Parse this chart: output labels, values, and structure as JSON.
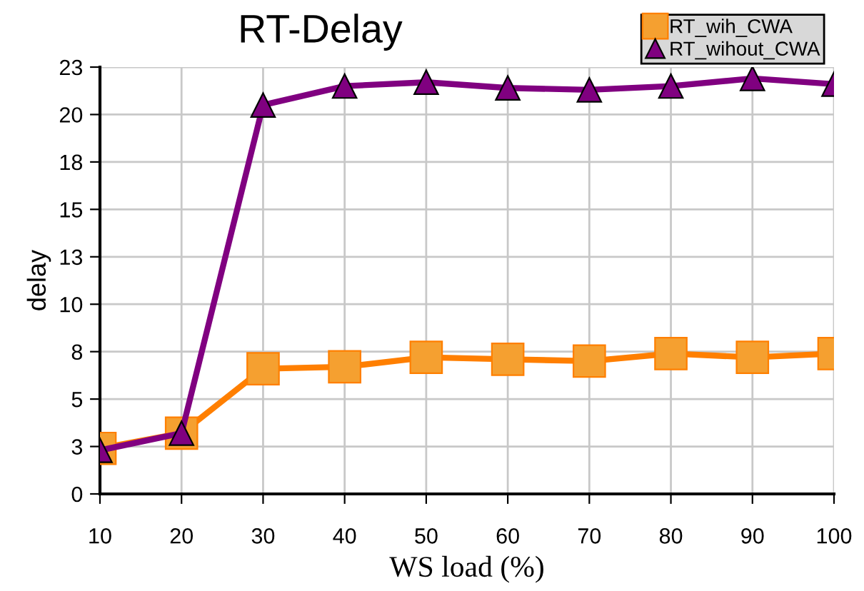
{
  "chart_data": {
    "type": "line",
    "title": "RT-Delay",
    "xlabel": "WS load (%)",
    "ylabel": "delay",
    "x": [
      10,
      20,
      30,
      40,
      50,
      60,
      70,
      80,
      90,
      100
    ],
    "series": [
      {
        "name": "RT_wih_CWA",
        "color": "#ff7f00",
        "marker": "square",
        "values": [
          2.4,
          3.2,
          6.6,
          6.7,
          7.2,
          7.1,
          7.0,
          7.4,
          7.2,
          7.4
        ]
      },
      {
        "name": "RT_wihout_CWA",
        "color": "#800080",
        "marker": "triangle",
        "values": [
          2.3,
          3.2,
          20.5,
          21.5,
          21.7,
          21.4,
          21.3,
          21.5,
          21.9,
          21.6
        ]
      }
    ],
    "xlim": [
      10,
      100
    ],
    "xticks": [
      10,
      20,
      30,
      40,
      50,
      60,
      70,
      80,
      90,
      100
    ],
    "ylim": [
      0,
      22.5
    ],
    "yticks": [
      0,
      {
        "value": 2.5,
        "label": "3"
      },
      5,
      {
        "value": 7.5,
        "label": "8"
      },
      10,
      {
        "value": 12.5,
        "label": "13"
      },
      15,
      {
        "value": 17.5,
        "label": "18"
      },
      20,
      {
        "value": 22.5,
        "label": "23"
      }
    ],
    "grid": true,
    "legend": "top right",
    "line_style": "solid"
  }
}
